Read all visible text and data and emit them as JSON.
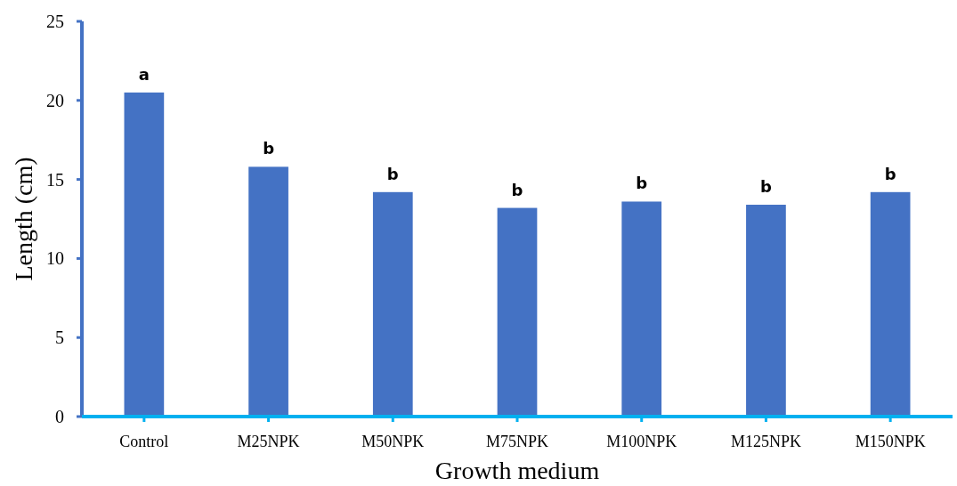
{
  "chart_data": {
    "type": "bar",
    "xlabel": "Growth medium",
    "ylabel": "Length (cm)",
    "categories": [
      "Control",
      "M25NPK",
      "M50NPK",
      "M75NPK",
      "M100NPK",
      "M125NPK",
      "M150NPK"
    ],
    "values": [
      20.5,
      15.8,
      14.2,
      13.2,
      13.6,
      13.4,
      14.2
    ],
    "color": "#4472c4",
    "ylim": [
      0,
      25
    ],
    "yticks": [
      0,
      5,
      10,
      15,
      20,
      25
    ],
    "grid": false,
    "annotations": [
      {
        "text": "a",
        "x": "Control",
        "y": 20.5
      },
      {
        "text": "b",
        "x": "M25NPK",
        "y": 15.8
      },
      {
        "text": "b",
        "x": "M50NPK",
        "y": 14.2
      },
      {
        "text": "b",
        "x": "M75NPK",
        "y": 13.2
      },
      {
        "text": "b",
        "x": "M100NPK",
        "y": 13.6
      },
      {
        "text": "b",
        "x": "M125NPK",
        "y": 13.4
      },
      {
        "text": "b",
        "x": "M150NPK",
        "y": 14.2
      }
    ]
  }
}
